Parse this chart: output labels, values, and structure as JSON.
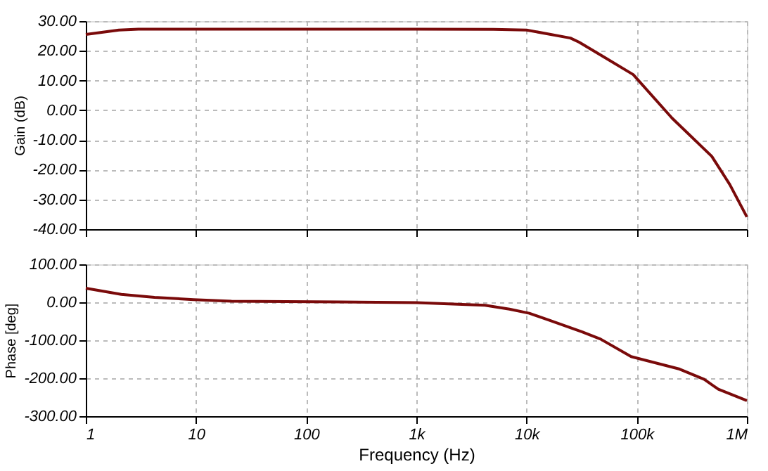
{
  "chart_data": [
    {
      "type": "line",
      "ylabel": "Gain (dB)",
      "log": "x",
      "grid": true,
      "line_style": "solid",
      "tick_labels": "y",
      "xlim": [
        1,
        1000000
      ],
      "xticks": [
        {
          "value": 1,
          "label": null
        },
        {
          "value": 10,
          "label": null
        },
        {
          "value": 100,
          "label": null
        },
        {
          "value": 1000,
          "label": null
        },
        {
          "value": 10000,
          "label": null
        },
        {
          "value": 100000,
          "label": null
        },
        {
          "value": 1000000,
          "label": null
        }
      ],
      "ylim": [
        -40,
        30
      ],
      "yticks": [
        {
          "value": -40,
          "label": "-40.00"
        },
        {
          "value": -30,
          "label": "-30.00"
        },
        {
          "value": -20,
          "label": "-20.00"
        },
        {
          "value": -10,
          "label": "-10.00"
        },
        {
          "value": 0,
          "label": "0.00"
        },
        {
          "value": 10,
          "label": "10.00"
        },
        {
          "value": 20,
          "label": "20.00"
        },
        {
          "value": 30,
          "label": "30.00"
        }
      ],
      "series": [
        {
          "color": "#7a0a0a",
          "x": [
            1,
            2,
            3,
            10,
            100,
            1000,
            5000,
            10000,
            25000,
            30000,
            50000,
            93000,
            210000,
            480000,
            700000,
            1000000
          ],
          "values": [
            25.5,
            27,
            27.3,
            27.3,
            27.3,
            27.3,
            27.2,
            27,
            24.3,
            22.9,
            18,
            12,
            -2.7,
            -15.5,
            -25,
            -35.9
          ]
        }
      ]
    },
    {
      "type": "line",
      "xlabel": "Frequency (Hz)",
      "ylabel": "Phase [deg]",
      "log": "x",
      "grid": true,
      "line_style": "solid",
      "xlim": [
        1,
        1000000
      ],
      "xticks": [
        {
          "value": 1,
          "label": "1"
        },
        {
          "value": 10,
          "label": "10"
        },
        {
          "value": 100,
          "label": "100"
        },
        {
          "value": 1000,
          "label": "1k"
        },
        {
          "value": 10000,
          "label": "10k"
        },
        {
          "value": 100000,
          "label": "100k"
        },
        {
          "value": 1000000,
          "label": "1M"
        }
      ],
      "ylim": [
        -300,
        100
      ],
      "yticks": [
        {
          "value": -300,
          "label": "-300.00"
        },
        {
          "value": -200,
          "label": "-200.00"
        },
        {
          "value": -100,
          "label": "-100.00"
        },
        {
          "value": 0,
          "label": "0.00"
        },
        {
          "value": 100,
          "label": "100.00"
        }
      ],
      "series": [
        {
          "color": "#7a0a0a",
          "x": [
            1,
            2.1,
            4.2,
            9.5,
            21,
            200,
            1000,
            4200,
            7000,
            10600,
            16000,
            32000,
            47000,
            89000,
            245000,
            410000,
            550000,
            1000000
          ],
          "values": [
            37,
            21,
            13,
            7,
            3,
            1,
            -1,
            -8,
            -18,
            -29,
            -47,
            -78,
            -97,
            -143,
            -176,
            -203,
            -229,
            -259
          ]
        }
      ]
    }
  ]
}
